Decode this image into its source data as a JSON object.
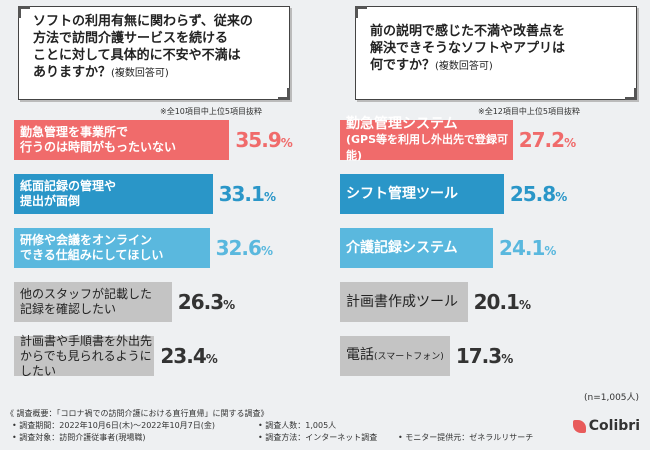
{
  "left_panel": {
    "question": "ソフトの利用有無に関わらず、従来の\n方法で訪問介護サービスを続ける\nことに対して具体的に不安や不満は\nありますか？",
    "question_sub": "(複数回答可)",
    "note": "※全10項目中上位5項目抜粋"
  },
  "right_panel": {
    "question": "前の説明で感じた不満や改善点を\n解決できそうなソフトやアプリは\n何ですか？",
    "question_sub": "(複数回答可)",
    "note": "※全12項目中上位5項目抜粋",
    "n_label": "(n=1,005人)"
  },
  "colors": {
    "red": "#f06b6b",
    "blue": "#2a96c8",
    "light_blue": "#5ab8de",
    "gray": "#c4c4c4"
  },
  "chart_data": [
    {
      "type": "bar",
      "orientation": "horizontal",
      "categories": [
        "勤急管理を事業所で\n行うのは時間がもったいない",
        "紙面記録の管理や\n提出が面倒",
        "研修や会議をオンライン\nできる仕組みにしてほしい",
        "他のスタッフが記載した\n記録を確認したい",
        "計画書や手順書を外出先\nからでも見られるようにしたい"
      ],
      "values": [
        35.9,
        33.1,
        32.6,
        26.3,
        23.4
      ],
      "value_labels": [
        "35.9",
        "33.1",
        "32.6",
        "26.3",
        "23.4"
      ],
      "colors": [
        "red",
        "blue",
        "light_blue",
        "gray",
        "gray"
      ],
      "xlim": [
        0,
        100
      ]
    },
    {
      "type": "bar",
      "orientation": "horizontal",
      "categories": [
        "勤急管理システム",
        "シフト管理ツール",
        "介護記録システム",
        "計画書作成ツール",
        "電話"
      ],
      "category_subs": [
        "(GPS等を利用し外出先で登録可能)",
        "",
        "",
        "",
        "(スマートフォン)"
      ],
      "values": [
        27.2,
        25.8,
        24.1,
        20.1,
        17.3
      ],
      "value_labels": [
        "27.2",
        "25.8",
        "24.1",
        "20.1",
        "17.3"
      ],
      "colors": [
        "red",
        "blue",
        "light_blue",
        "gray",
        "gray"
      ],
      "xlim": [
        0,
        100
      ]
    }
  ],
  "footer": {
    "title": "《 調査概要：「コロナ禍での訪問介護における直行直帰」に関する調査》",
    "period": "• 調査期間：2022年10月6日(木)～2022年10月7日(金)",
    "count": "• 調査人数：1,005人",
    "target": "• 調査対象：訪問介護従事者(現場職)",
    "method": "• 調査方法：インターネット調査",
    "provider": "• モニター提供元：ゼネラルリサーチ",
    "logo": "Colibri"
  }
}
